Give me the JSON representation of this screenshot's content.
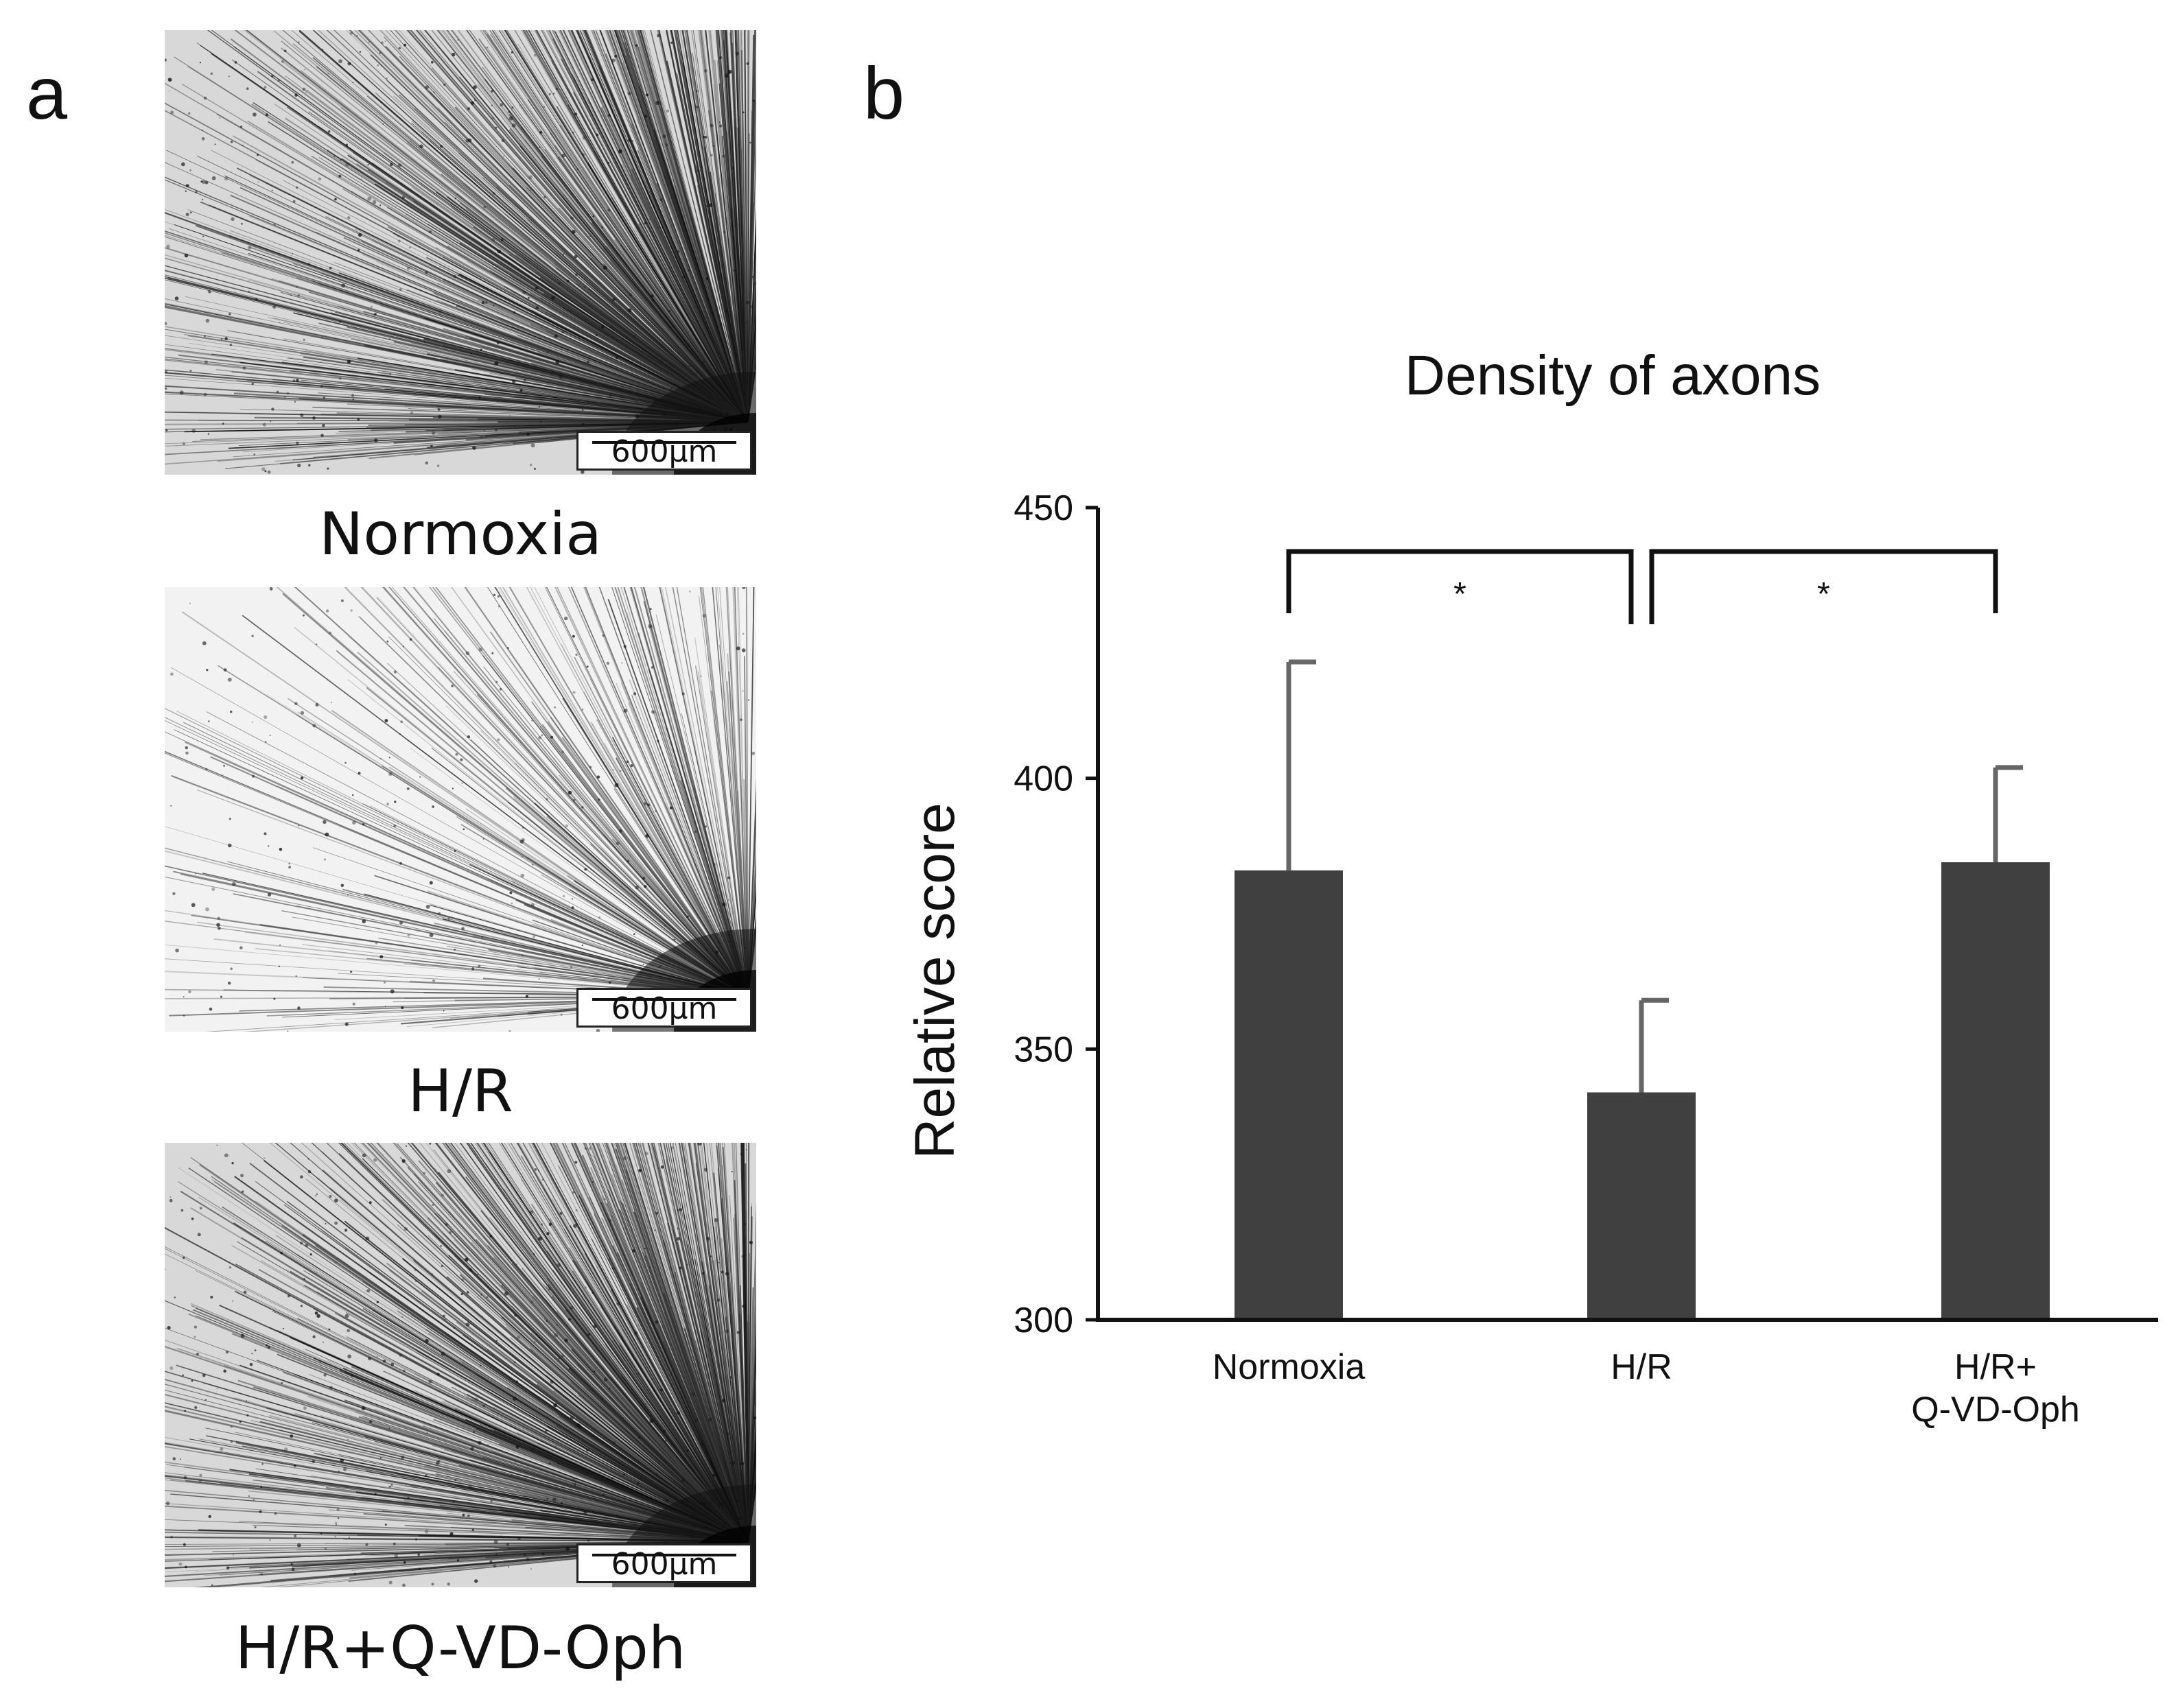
{
  "panel_a": {
    "label": "a",
    "images": [
      {
        "caption": "Normoxia",
        "scale_bar": "600µm",
        "axon_density": "dense"
      },
      {
        "caption": "H/R",
        "scale_bar": "600µm",
        "axon_density": "sparse"
      },
      {
        "caption": "H/R+Q-VD-Oph",
        "scale_bar": "600µm",
        "axon_density": "dense"
      }
    ]
  },
  "panel_b": {
    "label": "b"
  },
  "chart_data": {
    "type": "bar",
    "title": "Density of axons",
    "xlabel": "",
    "ylabel": "Relative score",
    "categories": [
      {
        "line1": "Normoxia",
        "line2": ""
      },
      {
        "line1": "H/R",
        "line2": ""
      },
      {
        "line1": "H/R+",
        "line2": "Q-VD-Oph"
      }
    ],
    "values": [
      383,
      342,
      384.5
    ],
    "error_upper": [
      421.5,
      359,
      402
    ],
    "ylim": [
      300,
      450
    ],
    "yticks": [
      300,
      350,
      400,
      450
    ],
    "ytick_labels": [
      "300",
      "350",
      "400",
      "450"
    ],
    "grid": false,
    "bar_color": "#404040",
    "error_color": "#666666",
    "significance": [
      {
        "from": 0,
        "to": 1,
        "label": "*"
      },
      {
        "from": 1,
        "to": 2,
        "label": "*"
      }
    ]
  }
}
